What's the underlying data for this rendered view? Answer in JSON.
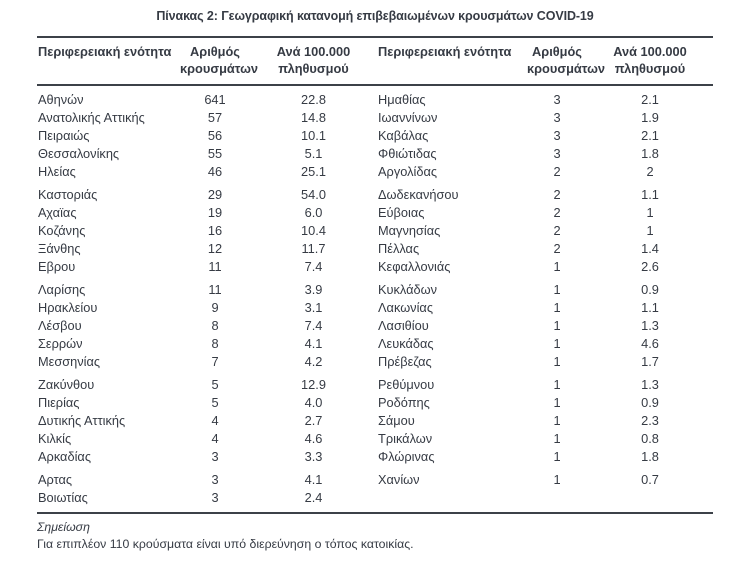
{
  "page": {
    "background": "#ffffff",
    "text_color": "#363b44",
    "rule_color": "#3c4148"
  },
  "title": "Πίνακας 2: Γεωγραφική κατανομή επιβεβαιωμένων κρουσμάτων COVID-19",
  "table": {
    "header": {
      "region": "Περιφερειακή ενότητα",
      "cases_lines": [
        "Αριθμός",
        "κρουσμάτων"
      ],
      "per100k_lines": [
        "Ανά 100.000",
        "πληθυσμού"
      ]
    },
    "left_groups": [
      [
        {
          "region": "Αθηνών",
          "cases": "641",
          "per_100k": "22.8"
        },
        {
          "region": "Ανατολικής Αττικής",
          "cases": "57",
          "per_100k": "14.8"
        },
        {
          "region": "Πειραιώς",
          "cases": "56",
          "per_100k": "10.1"
        },
        {
          "region": "Θεσσαλονίκης",
          "cases": "55",
          "per_100k": "5.1"
        },
        {
          "region": "Ηλείας",
          "cases": "46",
          "per_100k": "25.1"
        }
      ],
      [
        {
          "region": "Καστοριάς",
          "cases": "29",
          "per_100k": "54.0"
        },
        {
          "region": "Αχαϊας",
          "cases": "19",
          "per_100k": "6.0"
        },
        {
          "region": "Κοζάνης",
          "cases": "16",
          "per_100k": "10.4"
        },
        {
          "region": "Ξάνθης",
          "cases": "12",
          "per_100k": "11.7"
        },
        {
          "region": "Εβρου",
          "cases": "11",
          "per_100k": "7.4"
        }
      ],
      [
        {
          "region": "Λαρίσης",
          "cases": "11",
          "per_100k": "3.9"
        },
        {
          "region": "Ηρακλείου",
          "cases": "9",
          "per_100k": "3.1"
        },
        {
          "region": "Λέσβου",
          "cases": "8",
          "per_100k": "7.4"
        },
        {
          "region": "Σερρών",
          "cases": "8",
          "per_100k": "4.1"
        },
        {
          "region": "Μεσσηνίας",
          "cases": "7",
          "per_100k": "4.2"
        }
      ],
      [
        {
          "region": "Ζακύνθου",
          "cases": "5",
          "per_100k": "12.9"
        },
        {
          "region": "Πιερίας",
          "cases": "5",
          "per_100k": "4.0"
        },
        {
          "region": "Δυτικής Αττικής",
          "cases": "4",
          "per_100k": "2.7"
        },
        {
          "region": "Κιλκίς",
          "cases": "4",
          "per_100k": "4.6"
        },
        {
          "region": "Αρκαδίας",
          "cases": "3",
          "per_100k": "3.3"
        }
      ],
      [
        {
          "region": "Αρτας",
          "cases": "3",
          "per_100k": "4.1"
        },
        {
          "region": "Βοιωτίας",
          "cases": "3",
          "per_100k": "2.4"
        }
      ]
    ],
    "right_groups": [
      [
        {
          "region": "Ημαθίας",
          "cases": "3",
          "per_100k": "2.1"
        },
        {
          "region": "Ιωαννίνων",
          "cases": "3",
          "per_100k": "1.9"
        },
        {
          "region": "Καβάλας",
          "cases": "3",
          "per_100k": "2.1"
        },
        {
          "region": "Φθιώτιδας",
          "cases": "3",
          "per_100k": "1.8"
        },
        {
          "region": "Αργολίδας",
          "cases": "2",
          "per_100k": "2"
        }
      ],
      [
        {
          "region": "Δωδεκανήσου",
          "cases": "2",
          "per_100k": "1.1"
        },
        {
          "region": "Εύβοιας",
          "cases": "2",
          "per_100k": "1"
        },
        {
          "region": "Μαγνησίας",
          "cases": "2",
          "per_100k": "1"
        },
        {
          "region": "Πέλλας",
          "cases": "2",
          "per_100k": "1.4"
        },
        {
          "region": "Κεφαλλονιάς",
          "cases": "1",
          "per_100k": "2.6"
        }
      ],
      [
        {
          "region": "Κυκλάδων",
          "cases": "1",
          "per_100k": "0.9"
        },
        {
          "region": "Λακωνίας",
          "cases": "1",
          "per_100k": "1.1"
        },
        {
          "region": "Λασιθίου",
          "cases": "1",
          "per_100k": "1.3"
        },
        {
          "region": "Λευκάδας",
          "cases": "1",
          "per_100k": "4.6"
        },
        {
          "region": "Πρέβεζας",
          "cases": "1",
          "per_100k": "1.7"
        }
      ],
      [
        {
          "region": "Ρεθύμνου",
          "cases": "1",
          "per_100k": "1.3"
        },
        {
          "region": "Ροδόπης",
          "cases": "1",
          "per_100k": "0.9"
        },
        {
          "region": "Σάμου",
          "cases": "1",
          "per_100k": "2.3"
        },
        {
          "region": "Τρικάλων",
          "cases": "1",
          "per_100k": "0.8"
        },
        {
          "region": "Φλώρινας",
          "cases": "1",
          "per_100k": "1.8"
        }
      ],
      [
        {
          "region": "Χανίων",
          "cases": "1",
          "per_100k": "0.7"
        }
      ]
    ]
  },
  "note": {
    "label": "Σημείωση",
    "text": "Για επιπλέον 110 κρούσματα είναι υπό διερεύνηση ο τόπος κατοικίας."
  }
}
